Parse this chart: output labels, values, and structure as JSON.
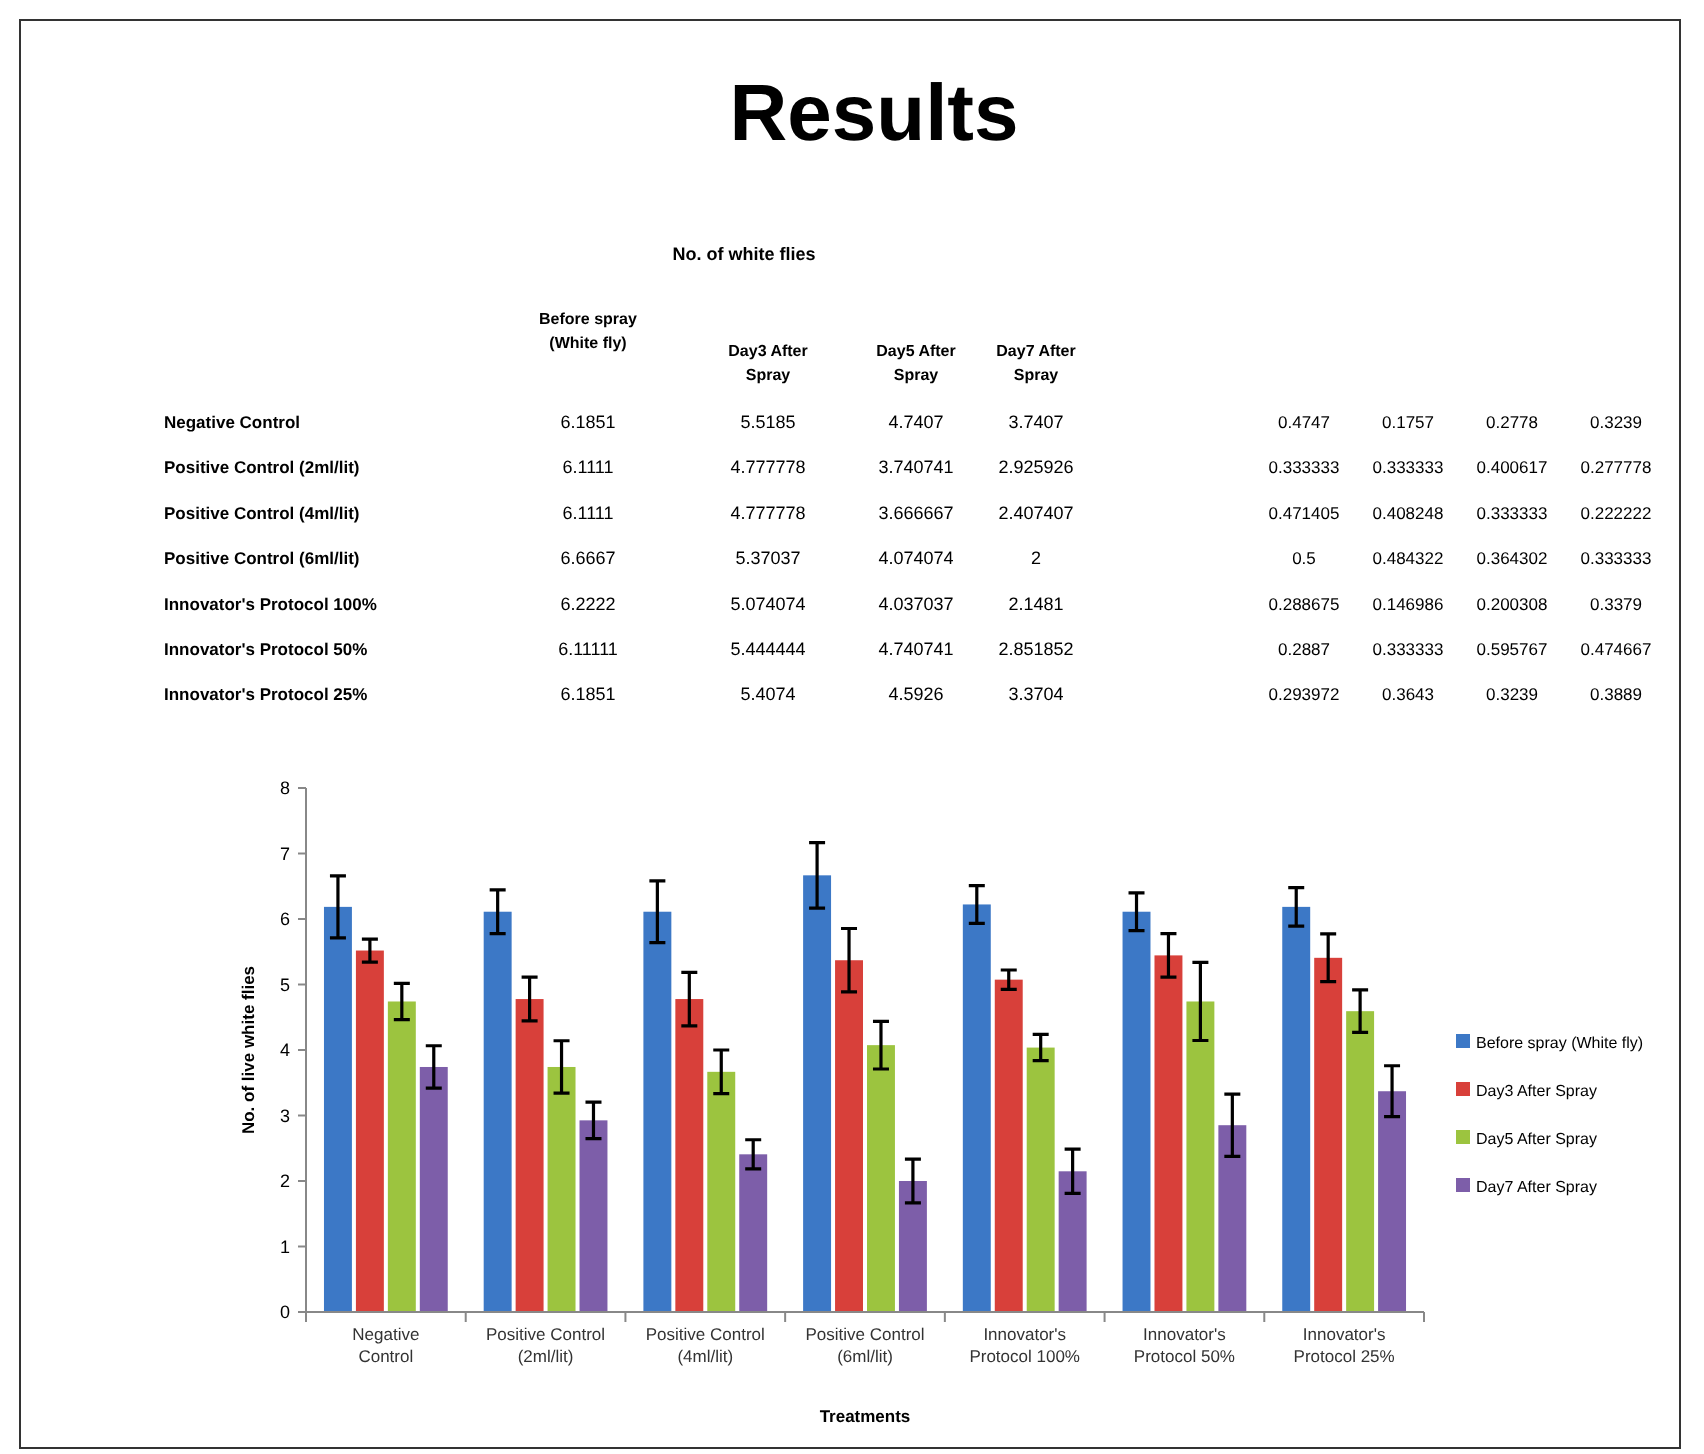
{
  "chart_data": [
    {
      "type": "other",
      "title": "Results",
      "annotations": [
        "No. of white flies",
        "Before spray (White fly)",
        "Day3 After Spray",
        "Day5 After Spray",
        "Day7 After Spray",
        "Negative Control",
        "6.1851",
        "5.5185",
        "4.7407",
        "3.7407",
        "0.4747",
        "0.1757",
        "0.2778",
        "0.3239",
        "Positive Control (2ml/lit)",
        "6.1111",
        "4.777778",
        "3.740741",
        "2.925926",
        "0.333333",
        "0.333333",
        "0.400617",
        "0.277778",
        "Positive Control (4ml/lit)",
        "6.1111",
        "4.777778",
        "3.666667",
        "2.407407",
        "0.471405",
        "0.408248",
        "0.333333",
        "0.222222",
        "Positive Control (6ml/lit)",
        "6.6667",
        "5.37037",
        "4.074074",
        "2",
        "0.5",
        "0.484322",
        "0.364302",
        "0.333333",
        "Innovator's Protocol 100%",
        "6.2222",
        "5.074074",
        "4.037037",
        "2.1481",
        "0.288675",
        "0.146986",
        "0.200308",
        "0.3379",
        "Innovator's Protocol 50%",
        "6.11111",
        "5.444444",
        "4.740741",
        "2.851852",
        "0.2887",
        "0.333333",
        "0.595767",
        "0.474667",
        "Innovator's Protocol 25%",
        "6.1851",
        "5.4074",
        "4.5926",
        "3.3704",
        "0.293972",
        "0.3643",
        "0.3239",
        "0.3889"
      ]
    },
    {
      "type": "bar",
      "xlabel": "Treatments",
      "ylabel": "No. of live white flies",
      "categories": [
        "Negative Control",
        "Positive Control (2ml/lit)",
        "Positive Control (4ml/lit)",
        "Positive Control (6ml/lit)",
        "Innovator's Protocol 100%",
        "Innovator's Protocol 50%",
        "Innovator's Protocol 25%"
      ],
      "series": [
        {
          "name": "Before spray (White fly)",
          "color": "#3c78c6",
          "values": [
            6.1851,
            6.1111,
            6.1111,
            6.6667,
            6.2222,
            6.11111,
            6.1851
          ],
          "errors": [
            0.4747,
            0.333333,
            0.471405,
            0.5,
            0.288675,
            0.2887,
            0.293972
          ]
        },
        {
          "name": "Day3 After Spray",
          "color": "#d8403a",
          "values": [
            5.5185,
            4.777778,
            4.777778,
            5.37037,
            5.074074,
            5.444444,
            5.4074
          ],
          "errors": [
            0.1757,
            0.333333,
            0.408248,
            0.484322,
            0.146986,
            0.333333,
            0.3643
          ]
        },
        {
          "name": "Day5 After Spray",
          "color": "#9cc43f",
          "values": [
            4.7407,
            3.740741,
            3.666667,
            4.074074,
            4.037037,
            4.740741,
            4.5926
          ],
          "errors": [
            0.2778,
            0.400617,
            0.333333,
            0.364302,
            0.200308,
            0.595767,
            0.3239
          ]
        },
        {
          "name": "Day7 After Spray",
          "color": "#7d5ea9",
          "values": [
            3.7407,
            2.925926,
            2.407407,
            2,
            2.1481,
            2.851852,
            3.3704
          ],
          "errors": [
            0.3239,
            0.277778,
            0.222222,
            0.333333,
            0.3379,
            0.474667,
            0.3889
          ]
        }
      ],
      "ylim": [
        0,
        8
      ],
      "yticks": [
        0,
        1,
        2,
        3,
        4,
        5,
        6,
        7,
        8
      ],
      "legend": "right"
    }
  ]
}
